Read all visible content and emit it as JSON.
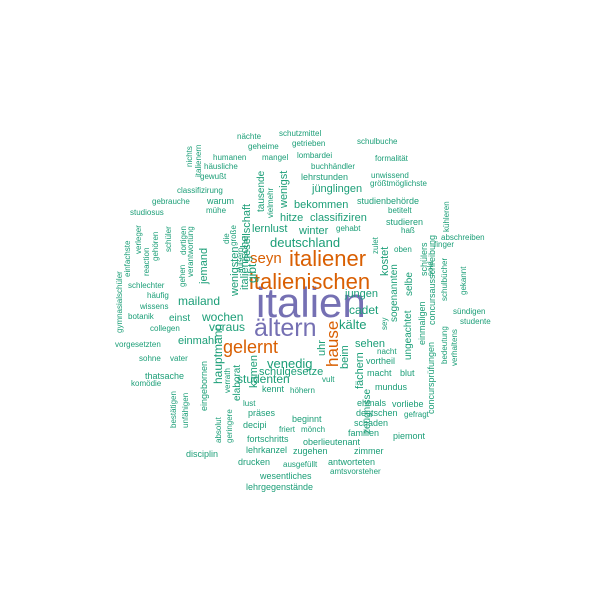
{
  "colors": {
    "background": "#ffffff",
    "teal": "#1b9e77",
    "orange": "#d95f02",
    "purple": "#7570b3"
  },
  "words": [
    {
      "text": "italien",
      "color": "purple"
    },
    {
      "text": "ältern",
      "color": "purple"
    },
    {
      "text": "italienischen",
      "color": "orange"
    },
    {
      "text": "italiener",
      "color": "orange"
    },
    {
      "text": "gelernt",
      "color": "orange"
    },
    {
      "text": "hause",
      "color": "orange"
    },
    {
      "text": "seyn",
      "color": "orange"
    },
    {
      "text": "deutschland",
      "color": "teal"
    },
    {
      "text": "venedig",
      "color": "teal"
    },
    {
      "text": "kälte",
      "color": "teal"
    },
    {
      "text": "mailand",
      "color": "teal"
    },
    {
      "text": "wochen",
      "color": "teal"
    },
    {
      "text": "voraus",
      "color": "teal"
    },
    {
      "text": "cadet",
      "color": "teal"
    },
    {
      "text": "jungen",
      "color": "teal"
    },
    {
      "text": "studenten",
      "color": "teal"
    },
    {
      "text": "schulgesetze",
      "color": "teal"
    },
    {
      "text": "sehen",
      "color": "teal"
    },
    {
      "text": "beim",
      "color": "teal"
    },
    {
      "text": "einmahl",
      "color": "teal"
    },
    {
      "text": "einst",
      "color": "teal"
    },
    {
      "text": "uhr",
      "color": "teal"
    },
    {
      "text": "lernlust",
      "color": "teal"
    },
    {
      "text": "winter",
      "color": "teal"
    },
    {
      "text": "bekommen",
      "color": "teal"
    },
    {
      "text": "classifiziren",
      "color": "teal"
    },
    {
      "text": "hitze",
      "color": "teal"
    },
    {
      "text": "jünglingen",
      "color": "teal"
    },
    {
      "text": "lehrstunden",
      "color": "teal"
    },
    {
      "text": "wenigst",
      "color": "teal"
    },
    {
      "text": "gesellschaft",
      "color": "teal"
    },
    {
      "text": "wenigsten",
      "color": "teal"
    },
    {
      "text": "italienische",
      "color": "teal"
    },
    {
      "text": "jemand",
      "color": "teal"
    },
    {
      "text": "hauptmann",
      "color": "teal"
    },
    {
      "text": "gibt",
      "color": "teal"
    },
    {
      "text": "kamen",
      "color": "teal"
    },
    {
      "text": "sogenannten",
      "color": "teal"
    },
    {
      "text": "ungeachtet",
      "color": "teal"
    },
    {
      "text": "fächern",
      "color": "teal"
    },
    {
      "text": "kostet",
      "color": "teal"
    },
    {
      "text": "zeugnisse",
      "color": "teal"
    },
    {
      "text": "studienbehörde",
      "color": "teal"
    },
    {
      "text": "studieren",
      "color": "teal"
    },
    {
      "text": "vortheil",
      "color": "teal"
    },
    {
      "text": "mundus",
      "color": "teal"
    },
    {
      "text": "macht",
      "color": "teal"
    },
    {
      "text": "blut",
      "color": "teal"
    },
    {
      "text": "nacht",
      "color": "teal"
    },
    {
      "text": "ehmals",
      "color": "teal"
    },
    {
      "text": "vorliebe",
      "color": "teal"
    },
    {
      "text": "deutschen",
      "color": "teal"
    },
    {
      "text": "gefragt",
      "color": "teal"
    },
    {
      "text": "schaden",
      "color": "teal"
    },
    {
      "text": "familien",
      "color": "teal"
    },
    {
      "text": "piemont",
      "color": "teal"
    },
    {
      "text": "oberlieutenant",
      "color": "teal"
    },
    {
      "text": "zugehen",
      "color": "teal"
    },
    {
      "text": "zimmer",
      "color": "teal"
    },
    {
      "text": "antworteten",
      "color": "teal"
    },
    {
      "text": "amtsvorsteher",
      "color": "teal"
    },
    {
      "text": "ausgefüllt",
      "color": "teal"
    },
    {
      "text": "wesentliches",
      "color": "teal"
    },
    {
      "text": "lehrgegenstände",
      "color": "teal"
    },
    {
      "text": "drucken",
      "color": "teal"
    },
    {
      "text": "lehrkanzel",
      "color": "teal"
    },
    {
      "text": "fortschritts",
      "color": "teal"
    },
    {
      "text": "decipi",
      "color": "teal"
    },
    {
      "text": "präses",
      "color": "teal"
    },
    {
      "text": "beginnt",
      "color": "teal"
    },
    {
      "text": "friert",
      "color": "teal"
    },
    {
      "text": "mönch",
      "color": "teal"
    },
    {
      "text": "höhern",
      "color": "teal"
    },
    {
      "text": "kennt",
      "color": "teal"
    },
    {
      "text": "lust",
      "color": "teal"
    },
    {
      "text": "vult",
      "color": "teal"
    },
    {
      "text": "elaborat",
      "color": "teal"
    },
    {
      "text": "verrath",
      "color": "teal"
    },
    {
      "text": "eingebornen",
      "color": "teal"
    },
    {
      "text": "thatsache",
      "color": "teal"
    },
    {
      "text": "komödie",
      "color": "teal"
    },
    {
      "text": "sohne",
      "color": "teal"
    },
    {
      "text": "vater",
      "color": "teal"
    },
    {
      "text": "vorgesetzten",
      "color": "teal"
    },
    {
      "text": "collegen",
      "color": "teal"
    },
    {
      "text": "botanik",
      "color": "teal"
    },
    {
      "text": "wissens",
      "color": "teal"
    },
    {
      "text": "häufig",
      "color": "teal"
    },
    {
      "text": "schlechter",
      "color": "teal"
    },
    {
      "text": "gymnasialschüler",
      "color": "teal"
    },
    {
      "text": "bestätigen",
      "color": "teal"
    },
    {
      "text": "unfähigen",
      "color": "teal"
    },
    {
      "text": "absolut",
      "color": "teal"
    },
    {
      "text": "geringere",
      "color": "teal"
    },
    {
      "text": "disciplin",
      "color": "teal"
    },
    {
      "text": "nächte",
      "color": "teal"
    },
    {
      "text": "schutzmittel",
      "color": "teal"
    },
    {
      "text": "geheime",
      "color": "teal"
    },
    {
      "text": "getrieben",
      "color": "teal"
    },
    {
      "text": "schulbuche",
      "color": "teal"
    },
    {
      "text": "humanen",
      "color": "teal"
    },
    {
      "text": "mangel",
      "color": "teal"
    },
    {
      "text": "lombardei",
      "color": "teal"
    },
    {
      "text": "häusliche",
      "color": "teal"
    },
    {
      "text": "buchhändler",
      "color": "teal"
    },
    {
      "text": "formalität",
      "color": "teal"
    },
    {
      "text": "gewußt",
      "color": "teal"
    },
    {
      "text": "unwissend",
      "color": "teal"
    },
    {
      "text": "größtmöglichste",
      "color": "teal"
    },
    {
      "text": "classifizirung",
      "color": "teal"
    },
    {
      "text": "gebrauche",
      "color": "teal"
    },
    {
      "text": "warum",
      "color": "teal"
    },
    {
      "text": "mühe",
      "color": "teal"
    },
    {
      "text": "studiosus",
      "color": "teal"
    },
    {
      "text": "betitelt",
      "color": "teal"
    },
    {
      "text": "gehabt",
      "color": "teal"
    },
    {
      "text": "haß",
      "color": "teal"
    },
    {
      "text": "oben",
      "color": "teal"
    },
    {
      "text": "kühleren",
      "color": "teal"
    },
    {
      "text": "abschreiben",
      "color": "teal"
    },
    {
      "text": "finger",
      "color": "teal"
    },
    {
      "text": "schulbücher",
      "color": "teal"
    },
    {
      "text": "gekannt",
      "color": "teal"
    },
    {
      "text": "bedeutung",
      "color": "teal"
    },
    {
      "text": "verhaltens",
      "color": "teal"
    },
    {
      "text": "sündigen",
      "color": "teal"
    },
    {
      "text": "studente",
      "color": "teal"
    },
    {
      "text": "concursausschreibung",
      "color": "teal"
    },
    {
      "text": "concursprüfungen",
      "color": "teal"
    },
    {
      "text": "einmaligen",
      "color": "teal"
    },
    {
      "text": "selbe",
      "color": "teal"
    },
    {
      "text": "schülers",
      "color": "teal"
    },
    {
      "text": "zulet",
      "color": "teal"
    },
    {
      "text": "sey",
      "color": "teal"
    },
    {
      "text": "sold",
      "color": "teal"
    },
    {
      "text": "äußern",
      "color": "teal"
    },
    {
      "text": "tausende",
      "color": "teal"
    },
    {
      "text": "vielmehr",
      "color": "teal"
    },
    {
      "text": "große",
      "color": "teal"
    },
    {
      "text": "die",
      "color": "teal"
    },
    {
      "text": "schüler",
      "color": "teal"
    },
    {
      "text": "dortigen",
      "color": "teal"
    },
    {
      "text": "gehen",
      "color": "teal"
    },
    {
      "text": "verantwortung",
      "color": "teal"
    },
    {
      "text": "gehören",
      "color": "teal"
    },
    {
      "text": "reaction",
      "color": "teal"
    },
    {
      "text": "verleger",
      "color": "teal"
    },
    {
      "text": "einfachste",
      "color": "teal"
    },
    {
      "text": "italienern",
      "color": "teal"
    },
    {
      "text": "nichts",
      "color": "teal"
    }
  ]
}
